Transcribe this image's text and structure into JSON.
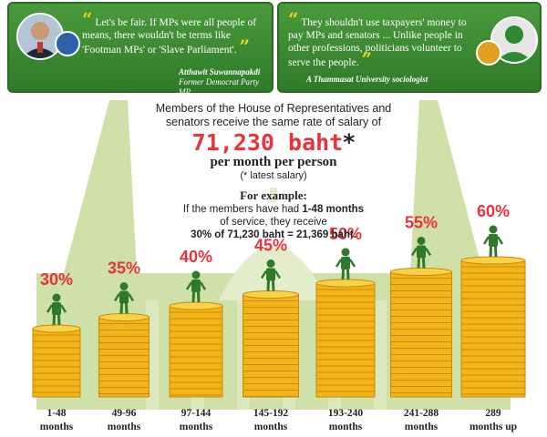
{
  "quotes": {
    "left": {
      "text": "Let's be fair. If MPs were all people of means, there wouldn't be terms like 'Footman MPs' or 'Slave Parliament'.",
      "name": "Atthawit Suwannapakdi",
      "role": "Former Democrat Party MP"
    },
    "right": {
      "text": "They shouldn't use taxpayers' money to pay MPs and senators ... Unlike people in other professions, politicians volunteer to serve the people.",
      "attribution": "A Thammasat University sociologist"
    }
  },
  "headline": {
    "line1": "Members of the House of Representatives and",
    "line2": "senators receive the same rate of salary of",
    "amount": "71,230 baht",
    "star": "*",
    "per_month": "per month per person",
    "note": "(* latest salary)"
  },
  "example": {
    "title": "For example:",
    "line1_a": "If the members have had ",
    "line1_b": "1-48 months",
    "line2": "of service, they receive",
    "line3_a": "30% of ",
    "line3_b": "71,230 baht",
    "line3_c": " = ",
    "line3_d": "21,369 baht."
  },
  "colors": {
    "quote_green": "#3a8a32",
    "accent_red": "#e8323c",
    "coin_gold": "#f2b418",
    "building_green": "#cfe0a8"
  },
  "chart_data": {
    "type": "bar",
    "series": [
      {
        "values": [
          30,
          35,
          40,
          45,
          50,
          55,
          60
        ],
        "labels": [
          "30%",
          "35%",
          "40%",
          "45%",
          "50%",
          "55%",
          "60%"
        ]
      }
    ],
    "categories": [
      [
        "1-48",
        "months"
      ],
      [
        "49-96",
        "months"
      ],
      [
        "97-144",
        "months"
      ],
      [
        "145-192",
        "months"
      ],
      [
        "193-240",
        "months"
      ],
      [
        "241-288",
        "months"
      ],
      [
        "289",
        "months up"
      ]
    ],
    "title": "",
    "xlabel": "",
    "ylabel": "",
    "ylim": [
      0,
      60
    ],
    "grid": false
  }
}
